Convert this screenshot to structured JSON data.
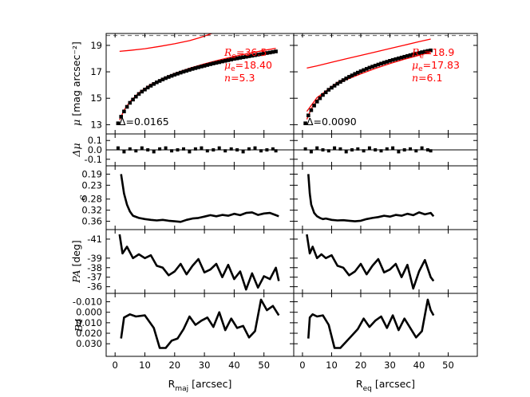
{
  "chart_data": {
    "type": "line",
    "columns": [
      {
        "xlabel_main": "R",
        "xlabel_sub": "maj",
        "xlabel_unit": " [arcsec]",
        "xticks": [
          "0",
          "10",
          "20",
          "30",
          "40",
          "50"
        ],
        "xlim": [
          -3,
          60
        ],
        "fit": {
          "re_label": "R",
          "re_sub": "e",
          "re_value": "=36.5",
          "mu_label": "μ",
          "mu_sub": "e",
          "mu_value": "=18.40",
          "n_label": "n",
          "n_value": "=5.3",
          "delta": "Δ=0.0165"
        },
        "profile_x": [
          1,
          2,
          3,
          4,
          5,
          6,
          7,
          8,
          9,
          10,
          11,
          12,
          13,
          14,
          15,
          16,
          17,
          18,
          19,
          20,
          21,
          22,
          23,
          24,
          25,
          26,
          27,
          28,
          29,
          30,
          31,
          32,
          33,
          34,
          35,
          36,
          37,
          38,
          39,
          40,
          41,
          42,
          43,
          44,
          45,
          46,
          47,
          48,
          49,
          50,
          51,
          52,
          53,
          54
        ],
        "profile_y": [
          13.1,
          13.6,
          14.0,
          14.35,
          14.65,
          14.9,
          15.12,
          15.32,
          15.5,
          15.66,
          15.81,
          15.95,
          16.08,
          16.2,
          16.31,
          16.42,
          16.52,
          16.61,
          16.7,
          16.78,
          16.86,
          16.94,
          17.01,
          17.08,
          17.15,
          17.22,
          17.28,
          17.34,
          17.4,
          17.46,
          17.52,
          17.58,
          17.63,
          17.68,
          17.73,
          17.78,
          17.83,
          17.88,
          17.93,
          17.98,
          18.02,
          18.06,
          18.1,
          18.14,
          18.18,
          18.22,
          18.26,
          18.3,
          18.34,
          18.38,
          18.42,
          18.46,
          18.5,
          18.54
        ],
        "model_x": [
          1.5,
          3,
          5,
          8,
          12,
          16,
          20,
          25,
          30,
          35,
          40,
          45,
          50,
          54
        ],
        "model_y": [
          13.35,
          14.1,
          14.75,
          15.42,
          16.05,
          16.5,
          16.88,
          17.27,
          17.6,
          17.9,
          18.16,
          18.4,
          18.62,
          18.78
        ],
        "bulge_x": [
          1.5,
          5,
          10,
          15,
          20,
          25,
          28,
          31,
          33
        ],
        "bulge_y": [
          18.55,
          18.62,
          18.75,
          18.92,
          19.12,
          19.36,
          19.55,
          19.78,
          19.95
        ],
        "residual_x": [
          1,
          3,
          5,
          7,
          9,
          11,
          13,
          15,
          17,
          19,
          21,
          23,
          25,
          27,
          29,
          31,
          33,
          35,
          37,
          39,
          41,
          43,
          45,
          47,
          49,
          51,
          53,
          54
        ],
        "residual_y": [
          0.02,
          -0.02,
          0.01,
          -0.01,
          0.02,
          0.0,
          -0.02,
          0.01,
          0.02,
          -0.01,
          0.0,
          0.01,
          -0.02,
          0.01,
          0.02,
          -0.01,
          0.0,
          0.02,
          -0.01,
          0.01,
          0.0,
          -0.02,
          0.01,
          0.02,
          -0.01,
          0.0,
          0.01,
          -0.01
        ],
        "ell_x": [
          2,
          3,
          4,
          5,
          6,
          8,
          10,
          12,
          14,
          16,
          18,
          20,
          22,
          24,
          26,
          28,
          30,
          32,
          34,
          36,
          38,
          40,
          42,
          44,
          46,
          48,
          50,
          52,
          54,
          55
        ],
        "ell_y": [
          0.19,
          0.26,
          0.3,
          0.325,
          0.34,
          0.348,
          0.352,
          0.355,
          0.357,
          0.355,
          0.358,
          0.36,
          0.362,
          0.355,
          0.35,
          0.348,
          0.343,
          0.338,
          0.342,
          0.337,
          0.34,
          0.333,
          0.338,
          0.33,
          0.328,
          0.337,
          0.332,
          0.33,
          0.338,
          0.342
        ],
        "pa_x": [
          1.5,
          2.5,
          4,
          6,
          8,
          10,
          12,
          14,
          16,
          18,
          20,
          22,
          24,
          26,
          28,
          30,
          32,
          34,
          36,
          38,
          40,
          42,
          44,
          46,
          48,
          50,
          52,
          54,
          55
        ],
        "pa_y": [
          -41.5,
          -39.5,
          -40.2,
          -39.0,
          -39.4,
          -39.0,
          -39.3,
          -38.2,
          -38.0,
          -37.2,
          -37.6,
          -38.4,
          -37.3,
          -38.2,
          -38.9,
          -37.5,
          -37.8,
          -38.4,
          -37.0,
          -38.3,
          -36.8,
          -37.6,
          -35.7,
          -37.4,
          -35.9,
          -37.1,
          -36.8,
          -38.0,
          -36.6
        ],
        "b4_x": [
          2,
          3,
          5,
          7,
          10,
          13,
          15,
          17,
          19,
          21,
          23,
          25,
          27,
          29,
          31,
          33,
          35,
          37,
          39,
          41,
          43,
          45,
          47,
          49,
          51,
          53,
          55
        ],
        "b4_y": [
          0.025,
          0.005,
          0.002,
          0.004,
          0.003,
          0.015,
          0.034,
          0.034,
          0.027,
          0.025,
          0.016,
          0.004,
          0.012,
          0.008,
          0.005,
          0.014,
          0.0,
          0.017,
          0.006,
          0.015,
          0.013,
          0.024,
          0.018,
          -0.012,
          -0.002,
          -0.006,
          0.003
        ]
      },
      {
        "xlabel_main": "R",
        "xlabel_sub": "eq",
        "xlabel_unit": " [arcsec]",
        "xticks": [
          "0",
          "10",
          "20",
          "30",
          "40",
          "50"
        ],
        "xlim": [
          -3,
          60
        ],
        "fit": {
          "re_label": "R",
          "re_sub": "e",
          "re_value": "=18.9",
          "mu_label": "μ",
          "mu_sub": "e",
          "mu_value": "=17.83",
          "n_label": "n",
          "n_value": "=6.1",
          "delta": "Δ=0.0090"
        },
        "profile_x": [
          1,
          2,
          3,
          4,
          5,
          6,
          7,
          8,
          9,
          10,
          11,
          12,
          13,
          14,
          15,
          16,
          17,
          18,
          19,
          20,
          21,
          22,
          23,
          24,
          25,
          26,
          27,
          28,
          29,
          30,
          31,
          32,
          33,
          34,
          35,
          36,
          37,
          38,
          39,
          40,
          41,
          42,
          43,
          44
        ],
        "profile_y": [
          13.1,
          13.7,
          14.1,
          14.45,
          14.75,
          15.0,
          15.25,
          15.45,
          15.64,
          15.8,
          15.95,
          16.1,
          16.24,
          16.37,
          16.5,
          16.62,
          16.73,
          16.84,
          16.94,
          17.04,
          17.13,
          17.22,
          17.31,
          17.39,
          17.47,
          17.55,
          17.62,
          17.69,
          17.76,
          17.83,
          17.9,
          17.96,
          18.02,
          18.08,
          18.14,
          18.2,
          18.26,
          18.32,
          18.38,
          18.43,
          18.48,
          18.53,
          18.58,
          18.62
        ],
        "model_x": [
          1.5,
          3,
          5,
          8,
          12,
          16,
          20,
          25,
          30,
          35,
          40,
          44
        ],
        "model_y": [
          13.4,
          14.2,
          14.85,
          15.55,
          16.2,
          16.68,
          17.07,
          17.48,
          17.84,
          18.17,
          18.47,
          18.7
        ],
        "disk_x": [
          1.5,
          5,
          10,
          15,
          20,
          25,
          30,
          35,
          40,
          44
        ],
        "disk_y": [
          17.28,
          17.45,
          17.72,
          17.98,
          18.24,
          18.5,
          18.76,
          19.02,
          19.28,
          19.48
        ],
        "bulge_x": [
          1.5,
          5,
          10,
          15,
          20,
          25,
          30,
          35,
          40,
          44
        ],
        "bulge_y": [
          14.0,
          15.05,
          15.85,
          16.4,
          16.85,
          17.25,
          17.62,
          17.95,
          18.25,
          18.48
        ],
        "residual_x": [
          1,
          3,
          5,
          7,
          9,
          11,
          13,
          15,
          17,
          19,
          21,
          23,
          25,
          27,
          29,
          31,
          33,
          35,
          37,
          39,
          41,
          43,
          44
        ],
        "residual_y": [
          0.01,
          -0.02,
          0.02,
          0.0,
          -0.01,
          0.02,
          0.01,
          -0.02,
          0.0,
          0.01,
          -0.01,
          0.02,
          0.0,
          -0.01,
          0.01,
          0.02,
          -0.02,
          0.0,
          0.01,
          -0.01,
          0.02,
          0.0,
          -0.01
        ],
        "ell_x": [
          2,
          2.5,
          3,
          4,
          5,
          6,
          7,
          8,
          10,
          12,
          14,
          16,
          18,
          20,
          22,
          24,
          26,
          28,
          30,
          32,
          34,
          36,
          38,
          40,
          42,
          44,
          45
        ],
        "ell_y": [
          0.19,
          0.26,
          0.3,
          0.33,
          0.342,
          0.348,
          0.352,
          0.35,
          0.355,
          0.357,
          0.356,
          0.358,
          0.36,
          0.358,
          0.352,
          0.348,
          0.345,
          0.34,
          0.343,
          0.337,
          0.34,
          0.333,
          0.338,
          0.328,
          0.335,
          0.33,
          0.342
        ],
        "pa_x": [
          1.5,
          2.5,
          3.5,
          5,
          6.5,
          8,
          10,
          12,
          14,
          16,
          18,
          20,
          22,
          24,
          26,
          28,
          30,
          32,
          34,
          36,
          38,
          40,
          42,
          44,
          45
        ],
        "pa_y": [
          -41.5,
          -39.5,
          -40.2,
          -39.0,
          -39.4,
          -39.0,
          -39.3,
          -38.2,
          -38.0,
          -37.2,
          -37.6,
          -38.4,
          -37.3,
          -38.2,
          -38.9,
          -37.5,
          -37.8,
          -38.4,
          -37.0,
          -38.3,
          -35.8,
          -37.6,
          -38.8,
          -37.0,
          -36.6
        ],
        "b4_x": [
          2,
          2.5,
          3.5,
          5,
          7,
          9,
          11,
          13,
          15,
          17,
          19,
          21,
          23,
          25,
          27,
          29,
          31,
          33,
          35,
          37,
          39,
          41,
          43,
          44,
          45
        ],
        "b4_y": [
          0.025,
          0.005,
          0.002,
          0.004,
          0.003,
          0.012,
          0.034,
          0.034,
          0.028,
          0.022,
          0.016,
          0.006,
          0.014,
          0.008,
          0.004,
          0.015,
          0.003,
          0.017,
          0.006,
          0.015,
          0.024,
          0.018,
          -0.012,
          -0.002,
          0.003
        ]
      }
    ],
    "rows": [
      {
        "key": "mu",
        "ylabel_italic": "μ",
        "ylabel_text": " [mag arcsec⁻²]",
        "ylim": [
          19.9,
          12.3
        ],
        "yticks": [
          "13",
          "15",
          "17",
          "19"
        ],
        "ytick_values": [
          13,
          15,
          17,
          19
        ],
        "hline": 19.75
      },
      {
        "key": "dmu",
        "ylabel_italic": "Δμ",
        "ylabel_text": "",
        "ylim": [
          0.17,
          -0.17
        ],
        "yticks": [
          "-0.1",
          "0.0",
          "0.1"
        ],
        "ytick_values": [
          -0.1,
          0.0,
          0.1
        ],
        "hline": 0.0
      },
      {
        "key": "ell",
        "ylabel_italic": "ϵ",
        "ylabel_text": "",
        "ylim": [
          0.16,
          0.39
        ],
        "yticks": [
          "0.19",
          "0.23",
          "0.28",
          "0.32",
          "0.36"
        ],
        "ytick_values": [
          0.19,
          0.23,
          0.28,
          0.32,
          0.36
        ]
      },
      {
        "key": "pa",
        "ylabel_italic": "PA",
        "ylabel_text": " [deg]",
        "ylim": [
          -42,
          -35.3
        ],
        "yticks": [
          "-41",
          "-39",
          "-38",
          "-37",
          "-36"
        ],
        "ytick_values": [
          -41,
          -39,
          -38,
          -37,
          -36
        ]
      },
      {
        "key": "b4",
        "ylabel_italic": "B4",
        "ylabel_text": "",
        "ylim": [
          -0.018,
          0.042
        ],
        "yticks": [
          "-0.010",
          "0.000",
          "0.010",
          "0.020",
          "0.030"
        ],
        "ytick_values": [
          -0.01,
          0.0,
          0.01,
          0.02,
          0.03
        ]
      }
    ],
    "colors": {
      "data": "#000000",
      "model": "#ff0000",
      "dashed": "#777777"
    }
  }
}
